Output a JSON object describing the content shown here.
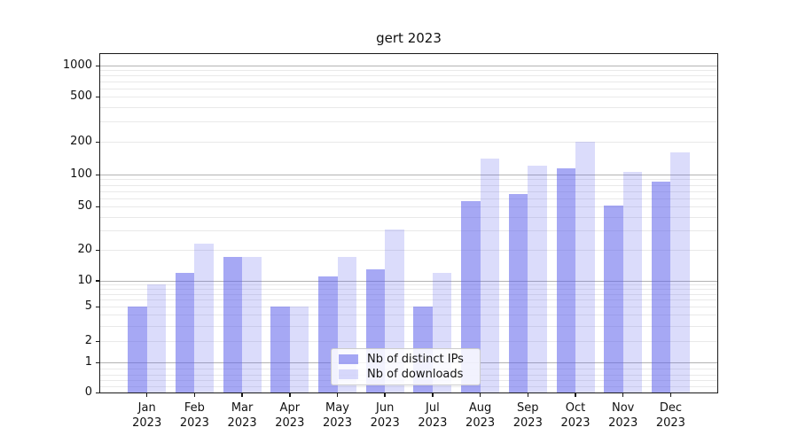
{
  "title": "gert 2023",
  "legend": {
    "items": [
      {
        "label": "Nb of distinct IPs"
      },
      {
        "label": "Nb of downloads"
      }
    ]
  },
  "colors": {
    "bar_base": "#5d61eb",
    "series_alpha": [
      0.55,
      0.22
    ],
    "bar_dark_displayed": "#a6a8f4",
    "bar_light_displayed": "#dadbf9",
    "major_gridline": "#b3b3b3",
    "minor_gridline": "#e9e9e9",
    "spine": "#1a1a1a"
  },
  "chart_data": {
    "type": "bar",
    "title": "gert 2023",
    "categories": [
      "Jan 2023",
      "Feb 2023",
      "Mar 2023",
      "Apr 2023",
      "May 2023",
      "Jun 2023",
      "Jul 2023",
      "Aug 2023",
      "Sep 2023",
      "Oct 2023",
      "Nov 2023",
      "Dec 2023"
    ],
    "series": [
      {
        "name": "Nb of distinct IPs",
        "values": [
          5,
          12,
          17,
          5,
          11,
          13,
          5,
          56,
          65,
          114,
          51,
          85
        ]
      },
      {
        "name": "Nb of downloads",
        "values": [
          9,
          23,
          17,
          5,
          17,
          31,
          12,
          140,
          120,
          200,
          105,
          160
        ]
      }
    ],
    "xlabel": "",
    "ylabel": "",
    "yscale": "asinh-symlog",
    "yticks": [
      0,
      1,
      2,
      5,
      10,
      20,
      50,
      100,
      200,
      500,
      1000
    ],
    "ylim": [
      0,
      1300
    ],
    "grid": true,
    "legend_position": "lower center"
  }
}
